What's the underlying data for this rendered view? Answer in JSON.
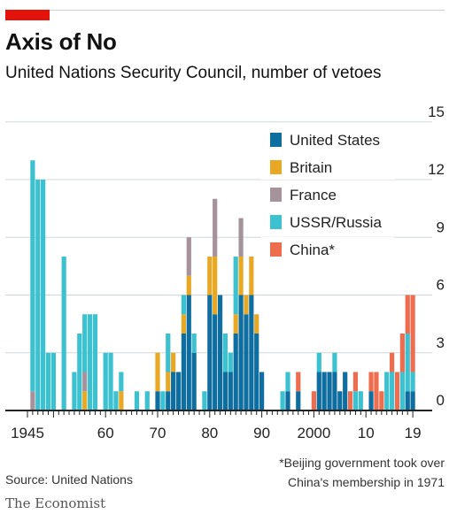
{
  "header": {
    "title": "Axis of No",
    "subtitle": "United Nations Security Council, number of vetoes"
  },
  "footer": {
    "source": "Source: United Nations",
    "footnote_line1": "*Beijing government took over",
    "footnote_line2": "China's membership in 1971",
    "brand": "The Economist"
  },
  "colors": {
    "accent_red": "#e3120b",
    "grid": "#d0d7dc",
    "axis": "#222222"
  },
  "chart_data": {
    "type": "bar",
    "stacked": true,
    "title": "Axis of No",
    "subtitle": "United Nations Security Council, number of vetoes",
    "ylim": [
      0,
      15
    ],
    "y_ticks": [
      0,
      3,
      6,
      9,
      12,
      15
    ],
    "x_tick_labels": [
      {
        "year": 1945,
        "label": "1945"
      },
      {
        "year": 1960,
        "label": "60"
      },
      {
        "year": 1970,
        "label": "70"
      },
      {
        "year": 1980,
        "label": "80"
      },
      {
        "year": 1990,
        "label": "90"
      },
      {
        "year": 2000,
        "label": "2000"
      },
      {
        "year": 2010,
        "label": "10"
      },
      {
        "year": 2019,
        "label": "19"
      }
    ],
    "grid": "horizontal",
    "legend_position": "top-right",
    "years": [
      1946,
      1947,
      1948,
      1949,
      1950,
      1951,
      1952,
      1953,
      1954,
      1955,
      1956,
      1957,
      1958,
      1959,
      1960,
      1961,
      1962,
      1963,
      1964,
      1965,
      1966,
      1967,
      1968,
      1969,
      1970,
      1971,
      1972,
      1973,
      1974,
      1975,
      1976,
      1977,
      1978,
      1979,
      1980,
      1981,
      1982,
      1983,
      1984,
      1985,
      1986,
      1987,
      1988,
      1989,
      1990,
      1991,
      1992,
      1993,
      1994,
      1995,
      1996,
      1997,
      1998,
      1999,
      2000,
      2001,
      2002,
      2003,
      2004,
      2005,
      2006,
      2007,
      2008,
      2009,
      2010,
      2011,
      2012,
      2013,
      2014,
      2015,
      2016,
      2017,
      2018,
      2019
    ],
    "series": [
      {
        "name": "United States",
        "color": "#0e6e9f",
        "values": [
          0,
          0,
          0,
          0,
          0,
          0,
          0,
          0,
          0,
          0,
          0,
          0,
          0,
          0,
          0,
          0,
          0,
          0,
          0,
          0,
          0,
          0,
          0,
          0,
          1,
          0,
          1,
          2,
          2,
          4,
          6,
          3,
          0,
          0,
          6,
          5,
          6,
          2,
          2,
          4,
          6,
          5,
          6,
          4,
          2,
          0,
          0,
          0,
          0,
          1,
          0,
          1,
          0,
          0,
          0,
          2,
          2,
          2,
          2,
          1,
          2,
          0,
          0,
          0,
          0,
          1,
          0,
          0,
          0,
          0,
          0,
          0,
          1,
          1
        ]
      },
      {
        "name": "Britain",
        "color": "#e8a823",
        "values": [
          0,
          0,
          0,
          0,
          0,
          0,
          0,
          0,
          0,
          0,
          1,
          0,
          0,
          0,
          0,
          0,
          0,
          1,
          0,
          0,
          0,
          0,
          0,
          0,
          2,
          0,
          1,
          1,
          0,
          1,
          1,
          0,
          0,
          0,
          2,
          3,
          0,
          0,
          0,
          1,
          2,
          1,
          2,
          1,
          0,
          0,
          0,
          0,
          0,
          0,
          0,
          0,
          0,
          0,
          0,
          0,
          0,
          0,
          0,
          0,
          0,
          0,
          0,
          0,
          0,
          0,
          0,
          0,
          0,
          0,
          0,
          0,
          0,
          0
        ]
      },
      {
        "name": "France",
        "color": "#a6929b",
        "values": [
          1,
          0,
          0,
          0,
          0,
          0,
          0,
          0,
          0,
          0,
          1,
          0,
          0,
          0,
          0,
          0,
          0,
          0,
          0,
          0,
          0,
          0,
          0,
          0,
          0,
          0,
          0,
          0,
          0,
          0,
          2,
          0,
          0,
          0,
          0,
          3,
          0,
          0,
          0,
          0,
          2,
          0,
          0,
          0,
          0,
          0,
          0,
          0,
          0,
          0,
          0,
          0,
          0,
          0,
          0,
          0,
          0,
          0,
          0,
          0,
          0,
          0,
          0,
          0,
          0,
          0,
          0,
          0,
          0,
          0,
          0,
          0,
          0,
          0
        ]
      },
      {
        "name": "USSR/Russia",
        "color": "#3cc1d1",
        "values": [
          12,
          12,
          12,
          3,
          3,
          0,
          8,
          0,
          2,
          4,
          3,
          5,
          5,
          0,
          3,
          3,
          1,
          1,
          0,
          0,
          1,
          0,
          1,
          0,
          0,
          1,
          2,
          0,
          0,
          1,
          0,
          1,
          0,
          1,
          0,
          0,
          0,
          2,
          1,
          3,
          0,
          0,
          0,
          0,
          0,
          0,
          0,
          0,
          1,
          1,
          0,
          0,
          0,
          0,
          0,
          1,
          0,
          0,
          1,
          0,
          0,
          0,
          1,
          1,
          0,
          0,
          0,
          0,
          2,
          2,
          0,
          2,
          3,
          1
        ]
      },
      {
        "name": "China*",
        "color": "#ee6d4f",
        "values": [
          0,
          0,
          0,
          0,
          0,
          0,
          0,
          0,
          0,
          0,
          0,
          0,
          0,
          0,
          0,
          0,
          0,
          0,
          0,
          0,
          0,
          0,
          0,
          0,
          0,
          0,
          0,
          0,
          0,
          0,
          0,
          0,
          0,
          0,
          0,
          0,
          0,
          0,
          0,
          0,
          0,
          0,
          0,
          0,
          0,
          0,
          0,
          0,
          0,
          0,
          0,
          1,
          0,
          0,
          1,
          0,
          0,
          0,
          0,
          0,
          0,
          1,
          1,
          0,
          0,
          1,
          2,
          1,
          0,
          1,
          2,
          2,
          2,
          4
        ]
      }
    ]
  }
}
